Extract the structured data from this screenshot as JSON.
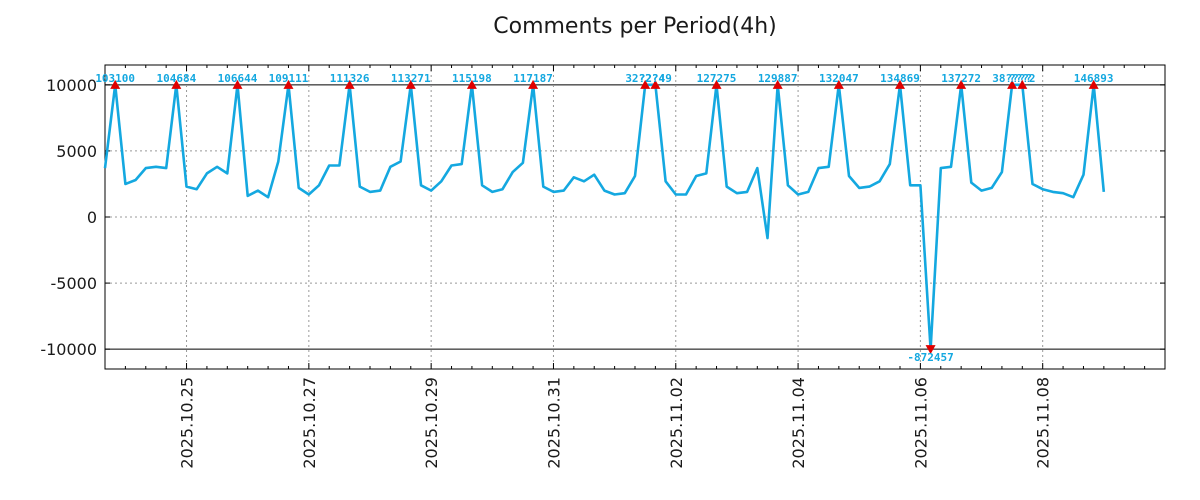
{
  "colors": {
    "line": "#14a8e0",
    "marker": "#e00000",
    "grid": "#999999",
    "axis": "#000000"
  },
  "chart_data": {
    "type": "line",
    "title": "Comments per Period(4h)",
    "xlabel": "",
    "ylabel": "",
    "ylim": [
      -11500,
      11500
    ],
    "clip_range": [
      -10000,
      10000
    ],
    "period_hours": 4,
    "x_start": "2025.10.23 16:00",
    "x_end": "2025.11.09 12:00",
    "xlim_periods": [
      0,
      104
    ],
    "grid": true,
    "y_ticks": [
      {
        "value": 10000,
        "label": "10000"
      },
      {
        "value": 5000,
        "label": "5000"
      },
      {
        "value": 0,
        "label": "0"
      },
      {
        "value": -5000,
        "label": "-5000"
      },
      {
        "value": -10000,
        "label": "-10000"
      }
    ],
    "x_ticks": [
      {
        "period": 8,
        "label": "2025.10.25"
      },
      {
        "period": 20,
        "label": "2025.10.27"
      },
      {
        "period": 32,
        "label": "2025.10.29"
      },
      {
        "period": 44,
        "label": "2025.10.31"
      },
      {
        "period": 56,
        "label": "2025.11.02"
      },
      {
        "period": 68,
        "label": "2025.11.04"
      },
      {
        "period": 80,
        "label": "2025.11.06"
      },
      {
        "period": 92,
        "label": "2025.11.08"
      }
    ],
    "series": [
      {
        "name": "Comments",
        "values": [
          3700,
          10000,
          2500,
          2800,
          3700,
          3800,
          3700,
          10000,
          2300,
          2100,
          3300,
          3800,
          3300,
          10000,
          1600,
          2000,
          1500,
          4200,
          10000,
          2200,
          1700,
          2400,
          3900,
          3900,
          10000,
          2300,
          1900,
          2000,
          3800,
          4200,
          10000,
          2400,
          2000,
          2700,
          3900,
          4000,
          10000,
          2400,
          1900,
          2100,
          3400,
          4100,
          10000,
          2300,
          1900,
          2000,
          3000,
          2700,
          3200,
          2000,
          1700,
          1800,
          3100,
          10000,
          10000,
          2700,
          1700,
          1700,
          3100,
          3300,
          10000,
          2300,
          1800,
          1900,
          3700,
          -1600,
          10000,
          2400,
          1700,
          1900,
          3700,
          3800,
          10000,
          3100,
          2200,
          2300,
          2700,
          4000,
          10000,
          2400,
          2400,
          -10000,
          3700,
          3800,
          10000,
          2600,
          2000,
          2200,
          3400,
          10000,
          10000,
          2500,
          2100,
          1900,
          1800,
          1500,
          3200,
          10000,
          1900
        ]
      }
    ],
    "annotations": [
      {
        "index": 1,
        "label": "103100",
        "kind": "max"
      },
      {
        "index": 7,
        "label": "104684",
        "kind": "max"
      },
      {
        "index": 13,
        "label": "106644",
        "kind": "max"
      },
      {
        "index": 18,
        "label": "109111",
        "kind": "max"
      },
      {
        "index": 24,
        "label": "111326",
        "kind": "max"
      },
      {
        "index": 30,
        "label": "113271",
        "kind": "max"
      },
      {
        "index": 36,
        "label": "115198",
        "kind": "max"
      },
      {
        "index": 42,
        "label": "117187",
        "kind": "max"
      },
      {
        "index": 53,
        "label": "32?2?4",
        "kind": "max"
      },
      {
        "index": 54,
        "label": "?2?49",
        "kind": "max"
      },
      {
        "index": 60,
        "label": "127275",
        "kind": "max"
      },
      {
        "index": 66,
        "label": "129887",
        "kind": "max"
      },
      {
        "index": 72,
        "label": "132047",
        "kind": "max"
      },
      {
        "index": 78,
        "label": "134869",
        "kind": "max"
      },
      {
        "index": 81,
        "label": "-872457",
        "kind": "min"
      },
      {
        "index": 84,
        "label": "137272",
        "kind": "max"
      },
      {
        "index": 89,
        "label": "38????",
        "kind": "max"
      },
      {
        "index": 90,
        "label": "???2",
        "kind": "max"
      },
      {
        "index": 97,
        "label": "146893",
        "kind": "max"
      }
    ]
  }
}
